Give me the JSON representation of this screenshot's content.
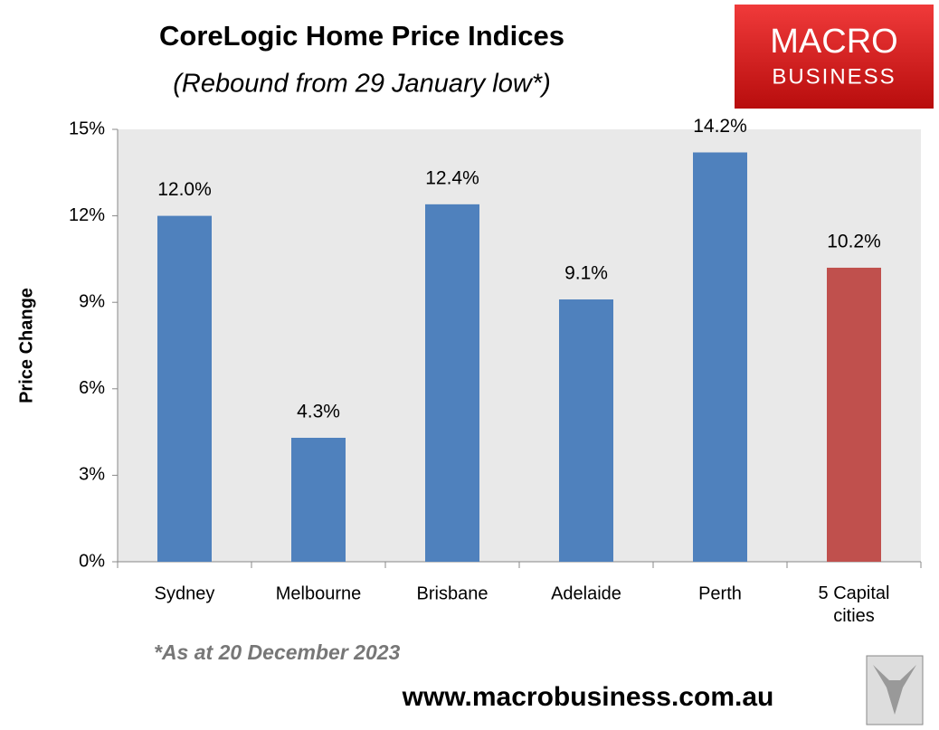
{
  "chart_data": {
    "type": "bar",
    "title": "CoreLogic Home Price Indices",
    "subtitle": "(Rebound from 29 January low*)",
    "y_label": "Price Change",
    "categories": [
      "Sydney",
      "Melbourne",
      "Brisbane",
      "Adelaide",
      "Perth",
      "5 Capital cities"
    ],
    "values": [
      12.0,
      4.3,
      12.4,
      9.1,
      14.2,
      10.2
    ],
    "value_labels": [
      "12.0%",
      "4.3%",
      "12.4%",
      "9.1%",
      "14.2%",
      "10.2%"
    ],
    "colors": [
      "#4f81bd",
      "#4f81bd",
      "#4f81bd",
      "#4f81bd",
      "#4f81bd",
      "#c0504d"
    ],
    "ylim": [
      0,
      15
    ],
    "yticks": [
      {
        "value": 0,
        "label": "0%"
      },
      {
        "value": 3,
        "label": "3%"
      },
      {
        "value": 6,
        "label": "6%"
      },
      {
        "value": 9,
        "label": "9%"
      },
      {
        "value": 12,
        "label": "12%"
      },
      {
        "value": 15,
        "label": "15%"
      }
    ],
    "footnote": "*As at 20 December 2023",
    "source": "www.macrobusiness.com.au",
    "logo": {
      "line1": "MACRO",
      "line2": "BUSINESS"
    }
  }
}
